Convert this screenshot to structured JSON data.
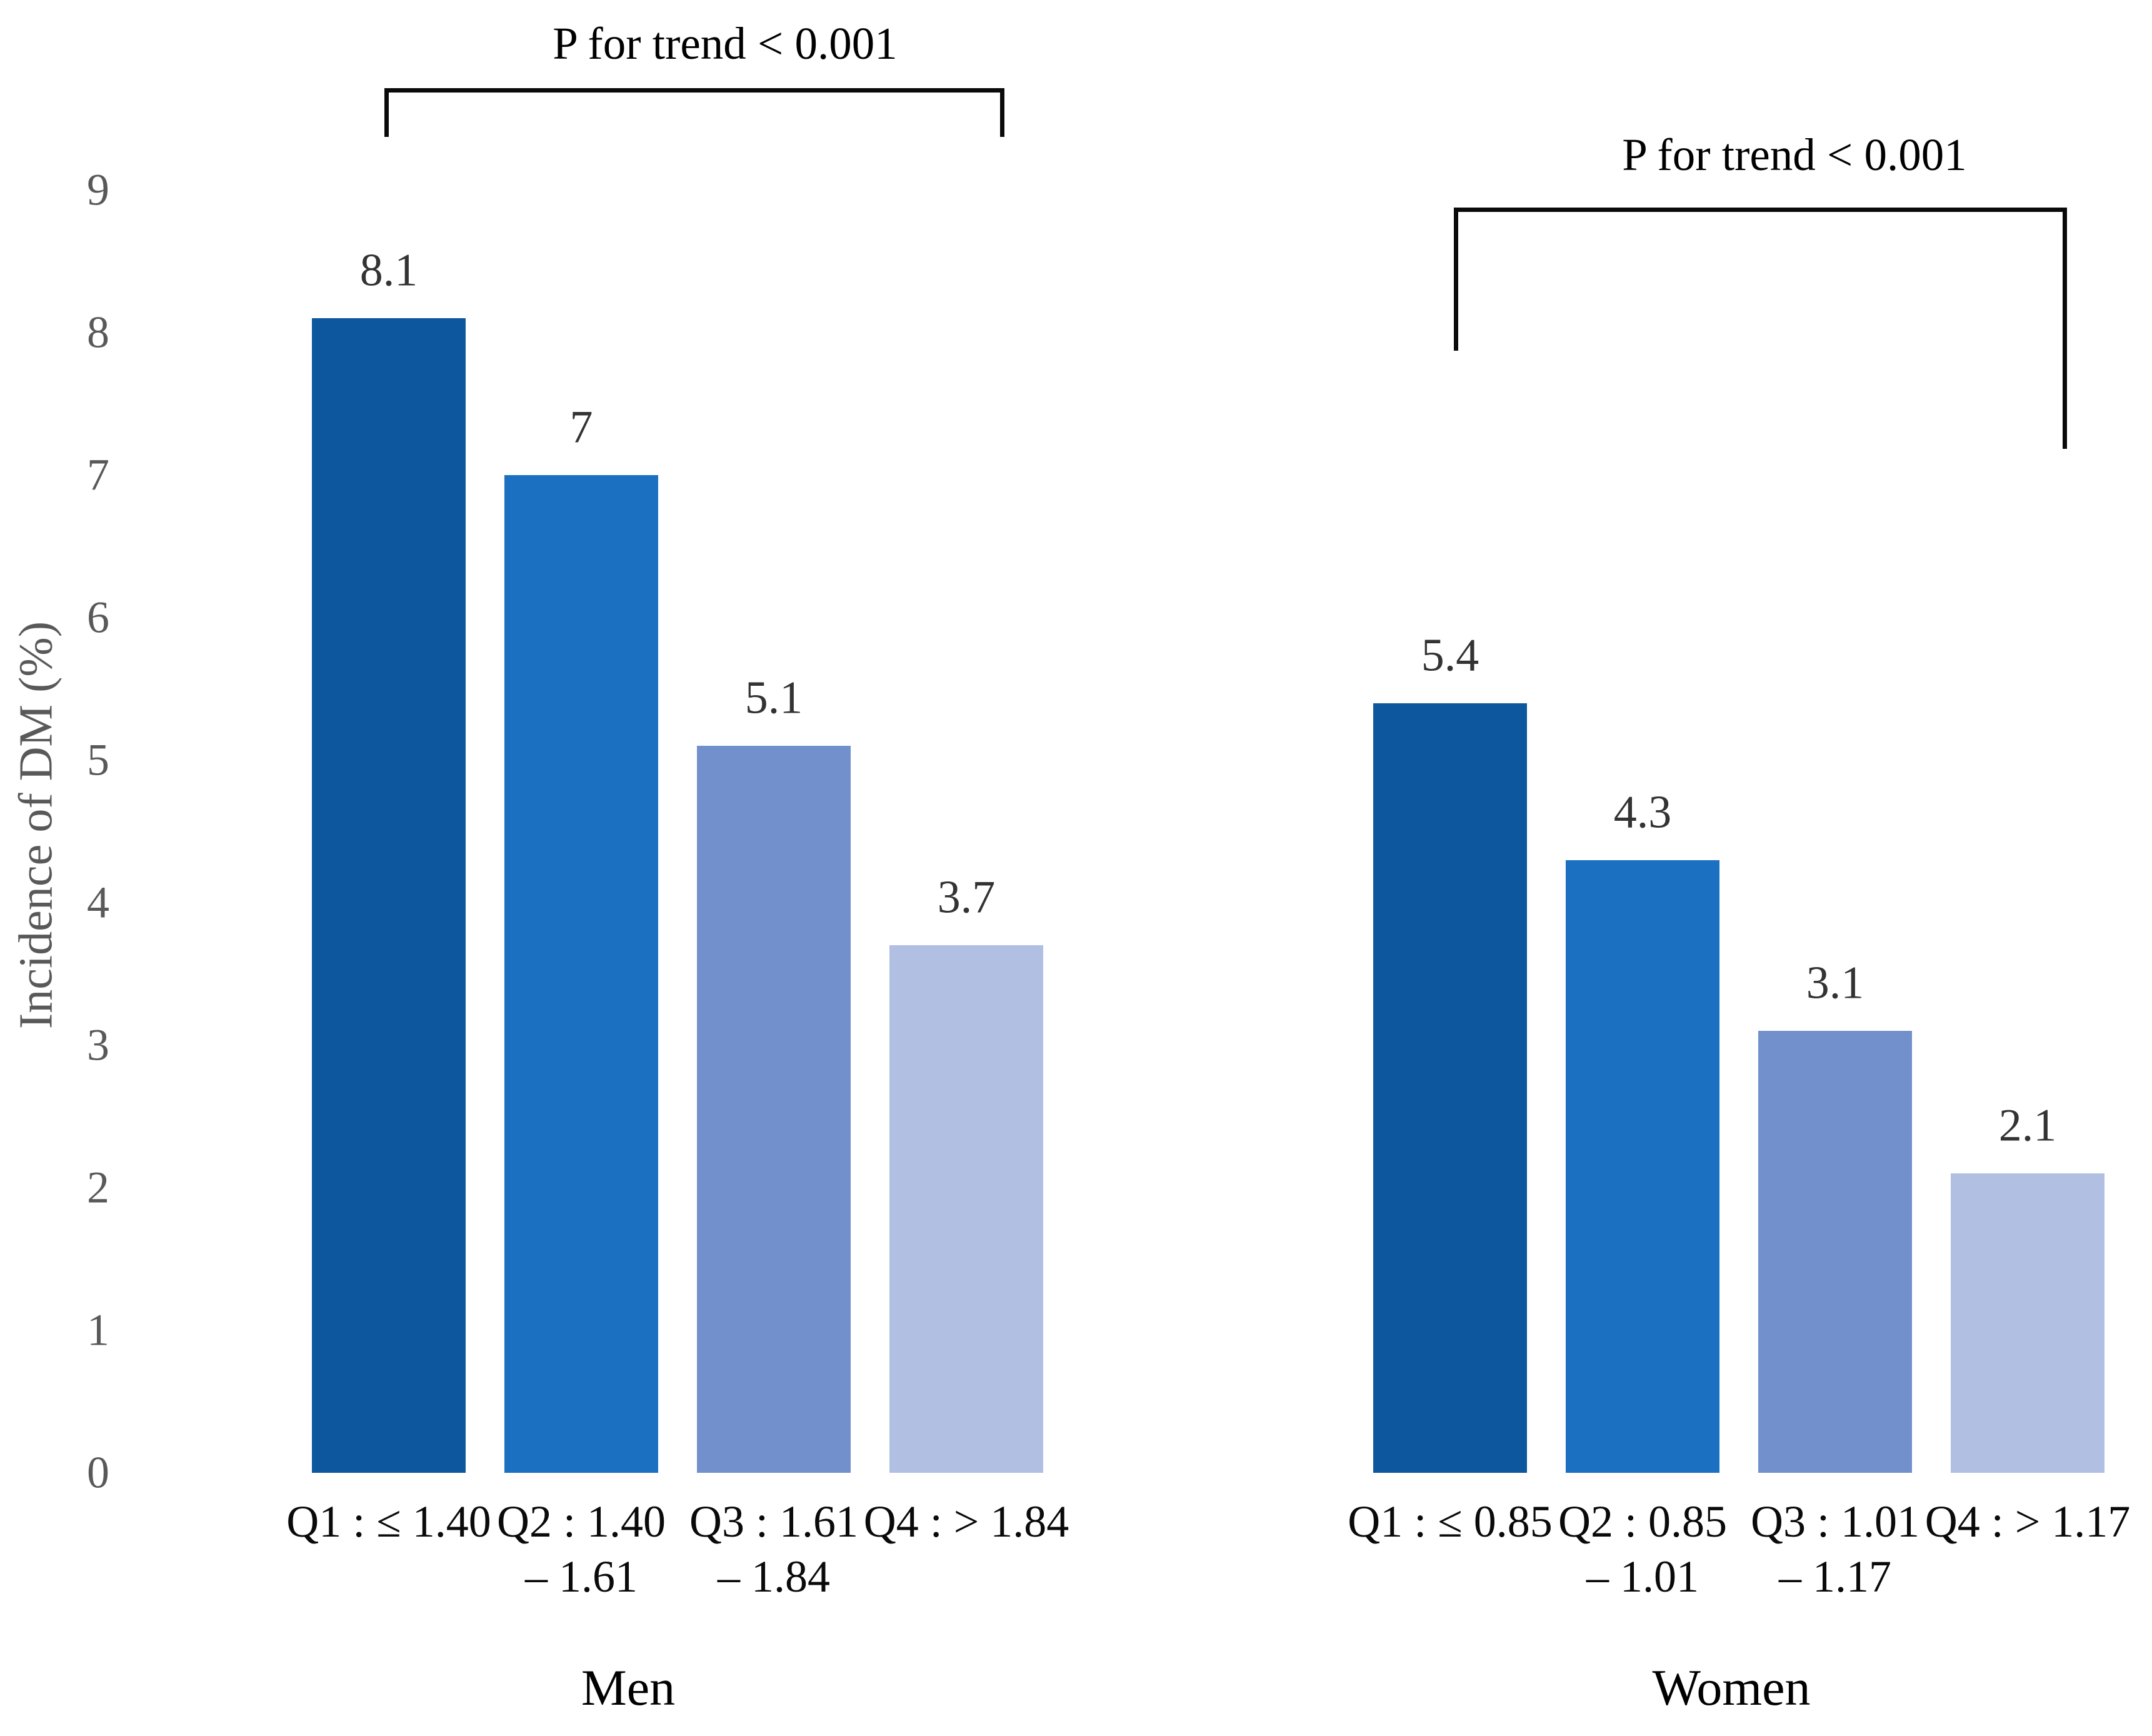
{
  "chart_data": {
    "type": "bar",
    "title": "",
    "xlabel": "",
    "ylabel": "Incidence of DM (%)",
    "ylim": [
      0,
      9
    ],
    "yticks": [
      0,
      1,
      2,
      3,
      4,
      5,
      6,
      7,
      8,
      9
    ],
    "grid": false,
    "legend": null,
    "series": [
      {
        "name": "Men",
        "annotation": "P for trend < 0.001",
        "categories": [
          "Q1 : ≤ 1.40",
          "Q2 : 1.40 – 1.61",
          "Q3 : 1.61 – 1.84",
          "Q4 : > 1.84"
        ],
        "values": [
          8.1,
          7,
          5.1,
          3.7
        ]
      },
      {
        "name": "Women",
        "annotation": "P for trend < 0.001",
        "categories": [
          "Q1 : ≤ 0.85",
          "Q2 : 0.85 – 1.01",
          "Q3 : 1.01 – 1.17",
          "Q4 : > 1.17"
        ],
        "values": [
          5.4,
          4.3,
          3.1,
          2.1
        ]
      }
    ],
    "bar_colors_by_quartile": [
      "#0D579E",
      "#1C70C1",
      "#7190CC",
      "#B1BFE3"
    ],
    "layout_hints": {
      "grouped_pairs": "two separate bar groups on shared y-axis",
      "significance_brackets": true,
      "value_labels_above_bars": true,
      "axis_lines_visible": false
    }
  },
  "figure": {
    "y_axis": {
      "title": "Incidence of DM (%)",
      "tick_labels": [
        "0",
        "1",
        "2",
        "3",
        "4",
        "5",
        "6",
        "7",
        "8",
        "9"
      ]
    },
    "text_colors": {
      "axis_gray": "#595959",
      "value_label": "#333333",
      "category_black": "#0a0a0a"
    },
    "groups": [
      {
        "label": "Men",
        "p_trend_label": "P for trend < 0.001",
        "bars": [
          {
            "value": 8.1,
            "value_label": "8.1",
            "category_line1": "Q1 : ≤ 1.40",
            "category_line2": "",
            "color": "#0D579E"
          },
          {
            "value": 7,
            "value_label": "7",
            "category_line1": "Q2 : 1.40",
            "category_line2": "– 1.61",
            "color": "#1C70C1"
          },
          {
            "value": 5.1,
            "value_label": "5.1",
            "category_line1": "Q3 : 1.61",
            "category_line2": "– 1.84",
            "color": "#7190CC"
          },
          {
            "value": 3.7,
            "value_label": "3.7",
            "category_line1": "Q4 : > 1.84",
            "category_line2": "",
            "color": "#B1BFE3"
          }
        ]
      },
      {
        "label": "Women",
        "p_trend_label": "P for trend < 0.001",
        "bars": [
          {
            "value": 5.4,
            "value_label": "5.4",
            "category_line1": "Q1 : ≤ 0.85",
            "category_line2": "",
            "color": "#0D579E"
          },
          {
            "value": 4.3,
            "value_label": "4.3",
            "category_line1": "Q2 : 0.85",
            "category_line2": "– 1.01",
            "color": "#1C70C1"
          },
          {
            "value": 3.1,
            "value_label": "3.1",
            "category_line1": "Q3 : 1.01",
            "category_line2": "– 1.17",
            "color": "#7190CC"
          },
          {
            "value": 2.1,
            "value_label": "2.1",
            "category_line1": "Q4 : > 1.17",
            "category_line2": "",
            "color": "#B1BFE3"
          }
        ]
      }
    ]
  }
}
